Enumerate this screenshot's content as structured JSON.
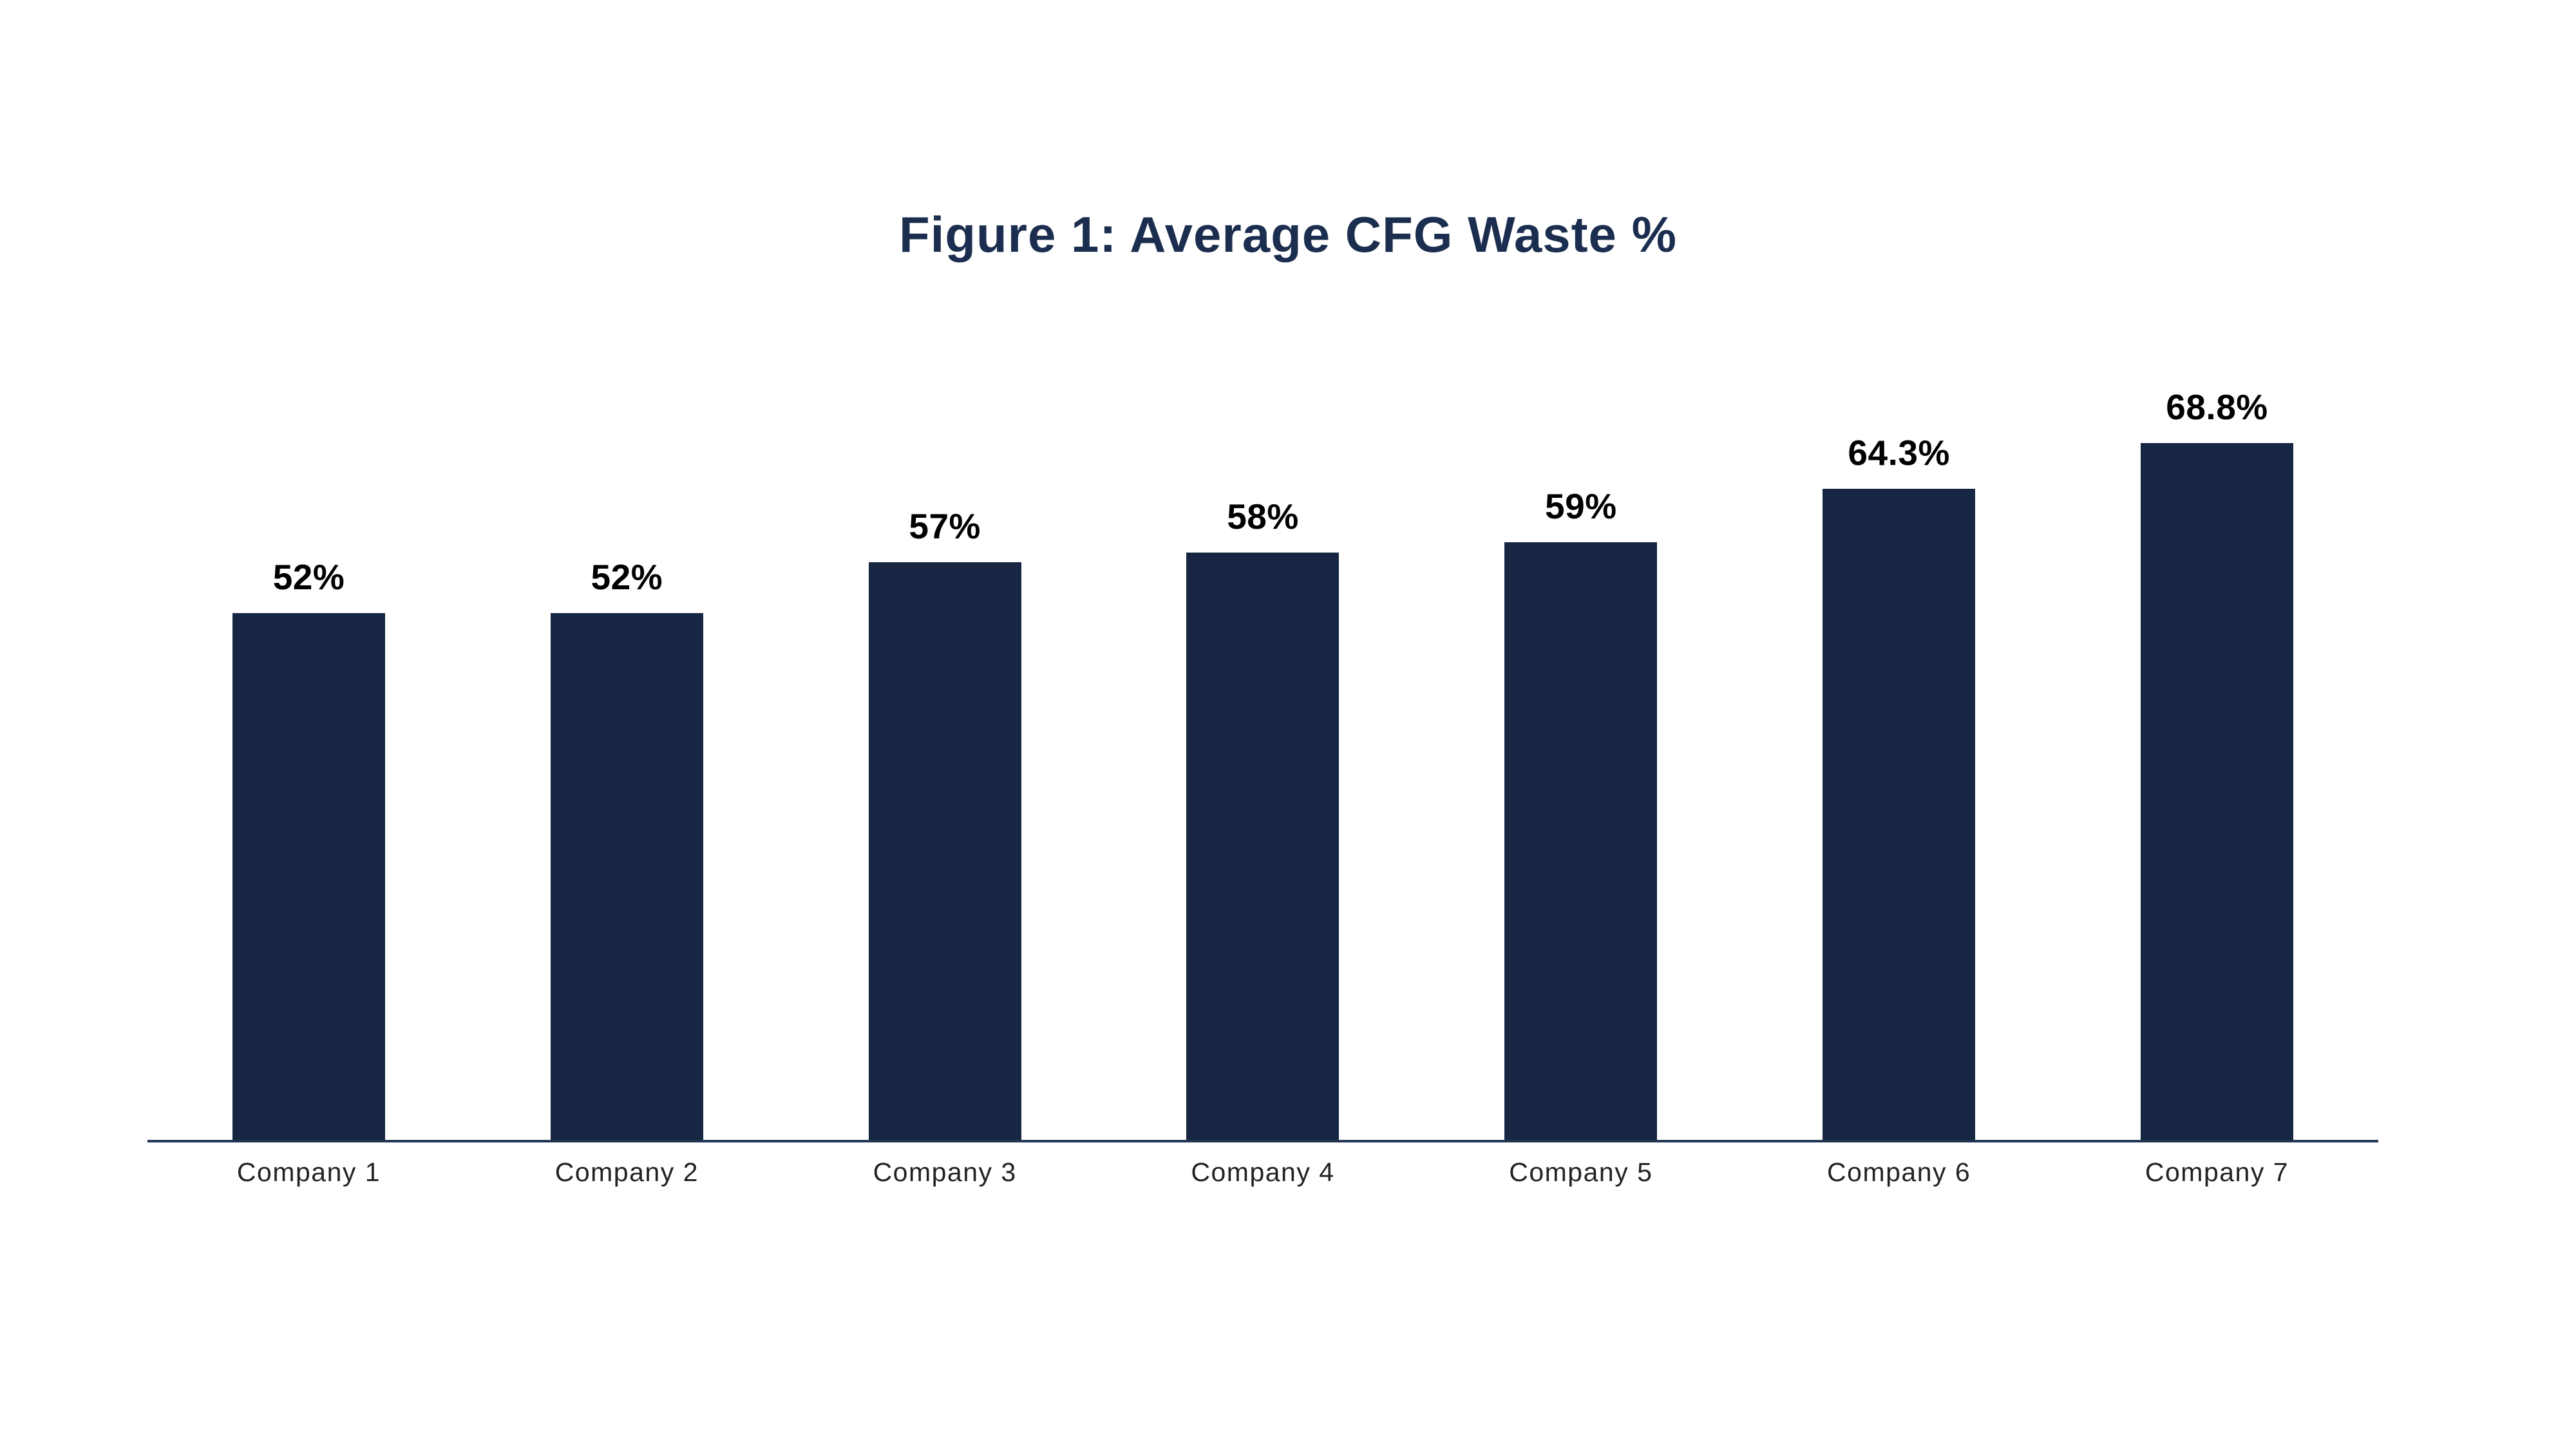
{
  "page": {
    "background_color": "#ffffff"
  },
  "chart_data": {
    "type": "bar",
    "title": "Figure 1: Average CFG Waste %",
    "categories": [
      "Company 1",
      "Company 2",
      "Company 3",
      "Company 4",
      "Company 5",
      "Company 6",
      "Company 7"
    ],
    "values": [
      52,
      52,
      57,
      58,
      59,
      64.3,
      68.8
    ],
    "value_labels": [
      "52%",
      "52%",
      "57%",
      "58%",
      "59%",
      "64.3%",
      "68.8%"
    ],
    "xlabel": "",
    "ylabel": "",
    "ylim": [
      0,
      75
    ],
    "grid": false,
    "legend": null,
    "y_axis_visible": false,
    "x_axis_line_visible": true,
    "bar_color": "#172642",
    "title_color": "#1c2e4f",
    "axis_line_color": "#233556",
    "value_label_color": "#000000",
    "category_label_color": "#222222"
  }
}
